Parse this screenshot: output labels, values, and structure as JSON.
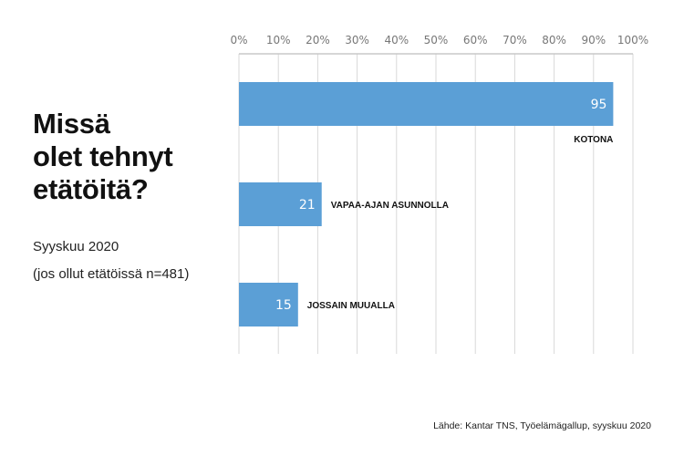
{
  "title_lines": [
    "Missä",
    "olet tehnyt",
    "etätöitä?"
  ],
  "subtitle": "Syyskuu 2020",
  "note": "(jos ollut etätöissä n=481)",
  "source": "Lähde: Kantar TNS, Työelämägallup, syyskuu 2020",
  "colors": {
    "bar": "#5b9fd6",
    "grid": "#d9d9d9",
    "tick": "#777777"
  },
  "chart_data": {
    "type": "bar",
    "orientation": "horizontal",
    "title": "Missä olet tehnyt etätöitä?",
    "categories": [
      "KOTONA",
      "VAPAA-AJAN ASUNNOLLA",
      "JOSSAIN MUUALLA"
    ],
    "values": [
      95,
      21,
      15
    ],
    "xlim": [
      0,
      100
    ],
    "xticks": [
      "0%",
      "10%",
      "20%",
      "30%",
      "40%",
      "50%",
      "60%",
      "70%",
      "80%",
      "90%",
      "100%"
    ],
    "grid": true
  }
}
